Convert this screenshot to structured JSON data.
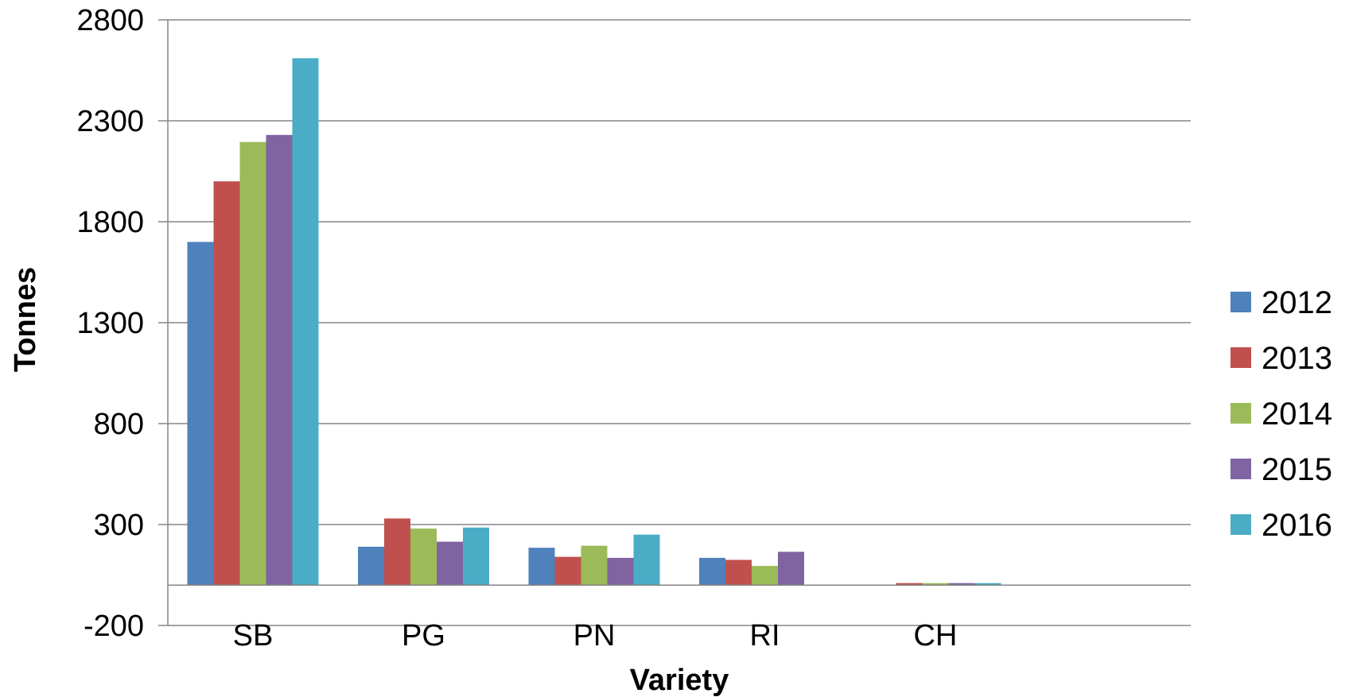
{
  "chart_data": {
    "type": "bar",
    "title": "",
    "xlabel": "Variety",
    "ylabel": "Tonnes",
    "categories": [
      "SB",
      "PG",
      "PN",
      "RI",
      "CH"
    ],
    "ylim": [
      -200,
      2800
    ],
    "yticks": [
      -200,
      300,
      800,
      1300,
      1800,
      2300,
      2800
    ],
    "grid": true,
    "legend_position": "right",
    "series": [
      {
        "name": "2012",
        "color": "#4F81BD",
        "values": [
          1700,
          190,
          185,
          135,
          0
        ]
      },
      {
        "name": "2013",
        "color": "#C0504D",
        "values": [
          2000,
          330,
          140,
          125,
          10
        ]
      },
      {
        "name": "2014",
        "color": "#9BBB59",
        "values": [
          2195,
          280,
          195,
          95,
          10
        ]
      },
      {
        "name": "2015",
        "color": "#8064A2",
        "values": [
          2230,
          215,
          135,
          165,
          10
        ]
      },
      {
        "name": "2016",
        "color": "#4BACC6",
        "values": [
          2610,
          285,
          250,
          0,
          10
        ]
      }
    ]
  }
}
